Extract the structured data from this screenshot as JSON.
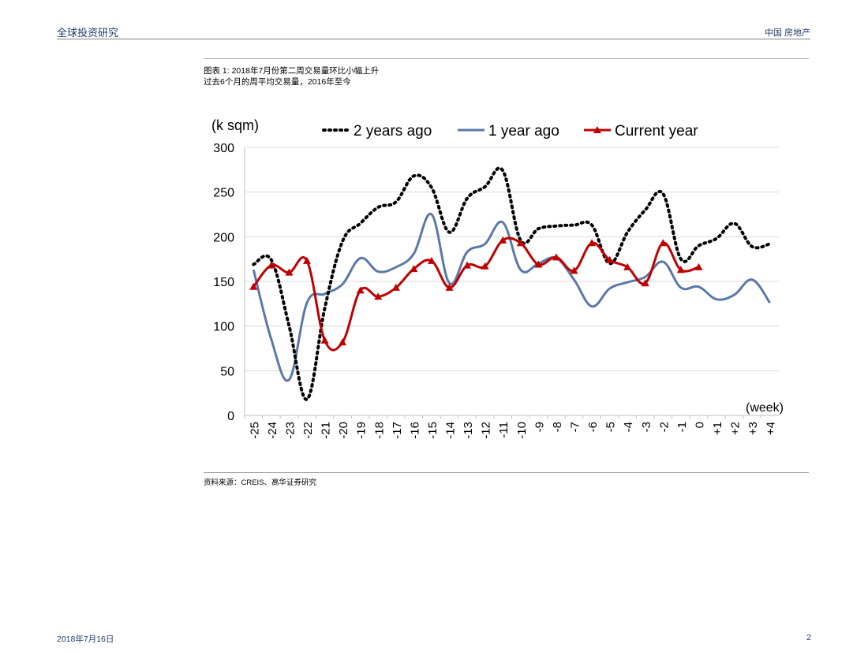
{
  "header": {
    "left_title": "全球投资研究",
    "right_title": "中国 房地产"
  },
  "figure": {
    "caption_title": "图表 1: 2018年7月份第二周交易量环比小幅上升",
    "caption_subtitle": "过去6个月的周平均交易量，2016年至今",
    "source": "资料来源：CREIS、高华证券研究"
  },
  "footer": {
    "date": "2018年7月16日",
    "page_number": "2"
  },
  "chart_data": {
    "type": "line",
    "title": "",
    "ylabel": "(k sqm)",
    "xlabel": "(week)",
    "ylim": [
      0,
      300
    ],
    "yticks": [
      "0",
      "50",
      "100",
      "150",
      "200",
      "250",
      "300"
    ],
    "grid": true,
    "legend_position": "top",
    "categories": [
      "-25",
      "-24",
      "-23",
      "-22",
      "-21",
      "-20",
      "-19",
      "-18",
      "-17",
      "-16",
      "-15",
      "-14",
      "-13",
      "-12",
      "-11",
      "-10",
      "-9",
      "-8",
      "-7",
      "-6",
      "-5",
      "-4",
      "-3",
      "-2",
      "-1",
      "0",
      "+1",
      "+2",
      "+3",
      "+4"
    ],
    "series": [
      {
        "name": "2 years ago",
        "color": "#000000",
        "style": "dotted",
        "values": [
          169,
          174,
          100,
          18,
          120,
          195,
          215,
          233,
          239,
          268,
          255,
          205,
          243,
          256,
          274,
          196,
          209,
          212,
          213,
          213,
          170,
          205,
          230,
          248,
          175,
          190,
          198,
          215,
          189,
          192
        ]
      },
      {
        "name": "1 year ago",
        "color": "#5b78a8",
        "style": "solid",
        "values": [
          163,
          85,
          40,
          126,
          136,
          147,
          176,
          161,
          166,
          181,
          225,
          148,
          183,
          192,
          216,
          163,
          170,
          176,
          152,
          122,
          142,
          149,
          155,
          172,
          143,
          144,
          130,
          135,
          152,
          126
        ]
      },
      {
        "name": "Current year",
        "color": "#c00000",
        "style": "solid-triangle",
        "values": [
          144,
          168,
          160,
          173,
          84,
          82,
          140,
          133,
          143,
          164,
          173,
          143,
          168,
          167,
          196,
          193,
          169,
          177,
          162,
          193,
          174,
          166,
          148,
          193,
          163,
          166,
          null,
          null,
          null,
          null
        ]
      }
    ]
  }
}
